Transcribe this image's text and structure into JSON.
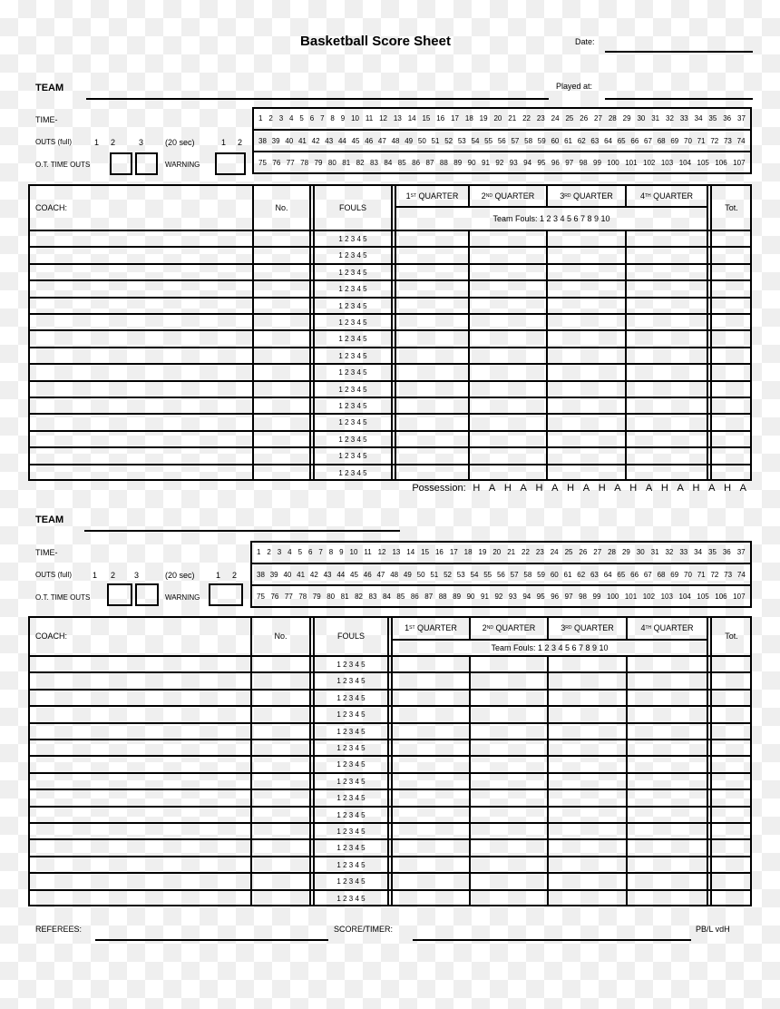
{
  "header": {
    "title": "Basketball Score Sheet",
    "date_label": "Date:"
  },
  "sections": [
    {
      "team_label": "TEAM",
      "played_at_label": "Played at:",
      "time_label": "TIME-",
      "outs_label": "OUTS (full)",
      "outs_numbers": [
        "1",
        "2",
        "3"
      ],
      "short_label": "(20 sec)",
      "short_numbers": [
        "1",
        "2"
      ],
      "ot_label": "O.T.  TIME OUTS",
      "warning_label": "WARNING",
      "coach_label": "COACH:",
      "no_label": "No.",
      "fouls_label": "FOULS",
      "player_fouls": "1 2 3 4 5",
      "quarters": [
        {
          "num": "1",
          "sup": "ST",
          "label": " QUARTER"
        },
        {
          "num": "2",
          "sup": "ND",
          "label": " QUARTER"
        },
        {
          "num": "3",
          "sup": "RD",
          "label": " QUARTER"
        },
        {
          "num": "4",
          "sup": "TH",
          "label": " QUARTER"
        }
      ],
      "team_fouls": "Team Fouls: 1 2 3 4 5 6 7 8 9 10",
      "total_label": "Tot.",
      "possession_label": "Possession:",
      "possession": [
        "H",
        "A",
        "H",
        "A",
        "H",
        "A",
        "H",
        "A",
        "H",
        "A",
        "H",
        "A",
        "H",
        "A",
        "H",
        "A",
        "H",
        "A"
      ]
    },
    {
      "team_label": "TEAM",
      "time_label": "TIME-",
      "outs_label": "OUTS (full)",
      "outs_numbers": [
        "1",
        "2",
        "3"
      ],
      "short_label": "(20 sec)",
      "short_numbers": [
        "1",
        "2"
      ],
      "ot_label": "O.T.  TIME OUTS",
      "warning_label": "WARNING",
      "coach_label": "COACH:",
      "no_label": "No.",
      "fouls_label": "FOULS",
      "player_fouls": "1 2 3 4 5",
      "quarters": [
        {
          "num": "1",
          "sup": "ST",
          "label": " QUARTER"
        },
        {
          "num": "2",
          "sup": "ND",
          "label": " QUARTER"
        },
        {
          "num": "3",
          "sup": "RD",
          "label": " QUARTER"
        },
        {
          "num": "4",
          "sup": "TH",
          "label": " QUARTER"
        }
      ],
      "team_fouls": "Team Fouls: 1 2 3 4 5 6 7 8 9 10",
      "total_label": "Tot."
    }
  ],
  "time_rows": [
    [
      "1",
      "2",
      "3",
      "4",
      "5",
      "6",
      "7",
      "8",
      "9",
      "10",
      "11",
      "12",
      "13",
      "14",
      "15",
      "16",
      "17",
      "18",
      "19",
      "20",
      "21",
      "22",
      "23",
      "24",
      "25",
      "26",
      "27",
      "28",
      "29",
      "30",
      "31",
      "32",
      "33",
      "34",
      "35",
      "36",
      "37"
    ],
    [
      "38",
      "39",
      "40",
      "41",
      "42",
      "43",
      "44",
      "45",
      "46",
      "47",
      "48",
      "49",
      "50",
      "51",
      "52",
      "53",
      "54",
      "55",
      "56",
      "57",
      "58",
      "59",
      "60",
      "61",
      "62",
      "63",
      "64",
      "65",
      "66",
      "67",
      "68",
      "69",
      "70",
      "71",
      "72",
      "73",
      "74"
    ],
    [
      "75",
      "76",
      "77",
      "78",
      "79",
      "80",
      "81",
      "82",
      "83",
      "84",
      "85",
      "86",
      "87",
      "88",
      "89",
      "90",
      "91",
      "92",
      "93",
      "94",
      "95",
      "96",
      "97",
      "98",
      "99",
      "100",
      "101",
      "102",
      "103",
      "104",
      "105",
      "106",
      "107"
    ]
  ],
  "player_rows": 15,
  "footer": {
    "referees_label": "REFEREES:",
    "score_timer_label": "SCORE/TIMER:",
    "credit": "PB/L vdH"
  }
}
